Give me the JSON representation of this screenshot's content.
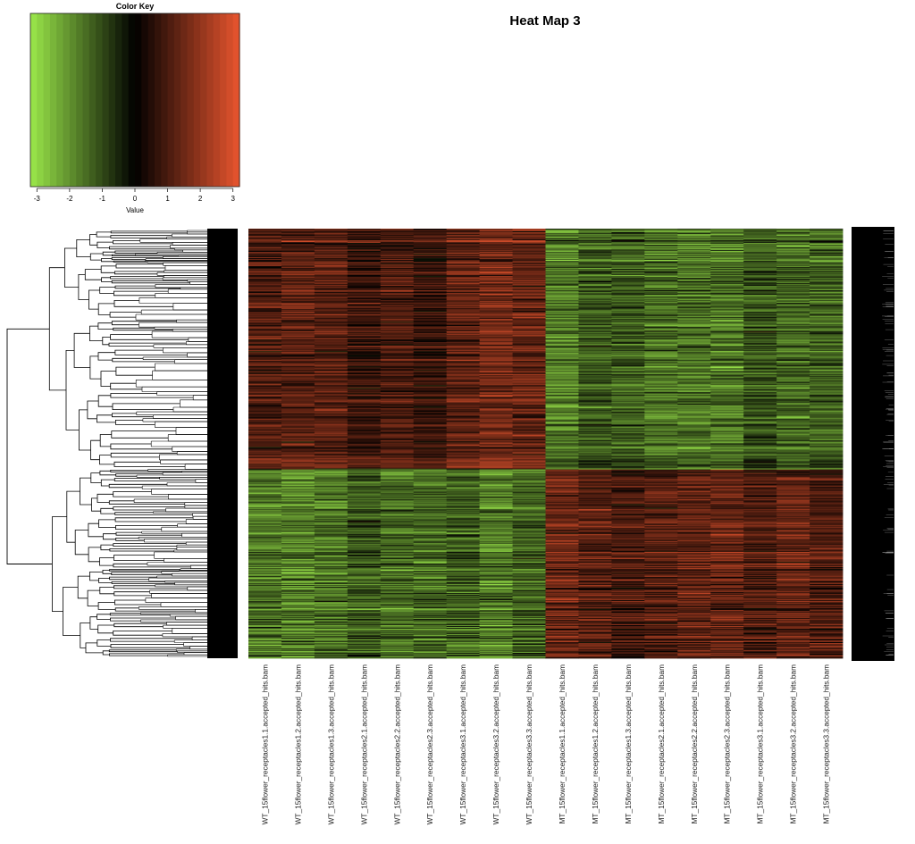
{
  "chart_data": {
    "type": "heatmap",
    "title": "Heat Map 3",
    "color_key": {
      "title": "Color Key",
      "xlabel": "Value",
      "ticks": [
        -3,
        -2,
        -1,
        0,
        1,
        2,
        3
      ],
      "range": [
        -3.2,
        3.2
      ],
      "low_color": "#9be84a",
      "mid_color": "#000000",
      "high_color": "#e8552e"
    },
    "columns": [
      "WT_15flower_receptacles1.1.accepted_hits.bam",
      "WT_15flower_receptacles1.2.accepted_hits.bam",
      "WT_15flower_receptacles1.3.accepted_hits.bam",
      "WT_15flower_receptacles2.1.accepted_hits.bam",
      "WT_15flower_receptacles2.2.accepted_hits.bam",
      "WT_15flower_receptacles2.3.accepted_hits.bam",
      "WT_15flower_receptacles3.1.accepted_hits.bam",
      "WT_15flower_receptacles3.2.accepted_hits.bam",
      "WT_15flower_receptacles3.3.accepted_hits.bam",
      "MT_15flower_receptacles1.1.accepted_hits.bam",
      "MT_15flower_receptacles1.2.accepted_hits.bam",
      "MT_15flower_receptacles1.3.accepted_hits.bam",
      "MT_15flower_receptacles2.1.accepted_hits.bam",
      "MT_15flower_receptacles2.2.accepted_hits.bam",
      "MT_15flower_receptacles2.3.accepted_hits.bam",
      "MT_15flower_receptacles3.1.accepted_hits.bam",
      "MT_15flower_receptacles3.2.accepted_hits.bam",
      "MT_15flower_receptacles3.3.accepted_hits.bam"
    ],
    "row_clusters": [
      {
        "share": 0.56,
        "col_means": [
          1.4,
          1.6,
          1.5,
          1.0,
          1.3,
          0.9,
          1.7,
          2.0,
          1.8,
          -2.2,
          -1.6,
          -1.7,
          -2.0,
          -2.1,
          -2.1,
          -1.5,
          -1.9,
          -1.8
        ]
      },
      {
        "share": 0.44,
        "col_means": [
          -2.0,
          -2.3,
          -2.0,
          -1.5,
          -1.9,
          -1.8,
          -1.6,
          -2.2,
          -1.7,
          2.0,
          1.6,
          1.3,
          1.5,
          1.7,
          1.9,
          1.4,
          1.8,
          1.5
        ]
      }
    ],
    "row_count": 480,
    "row_dendrogram": true,
    "legend_position": "top-left"
  }
}
